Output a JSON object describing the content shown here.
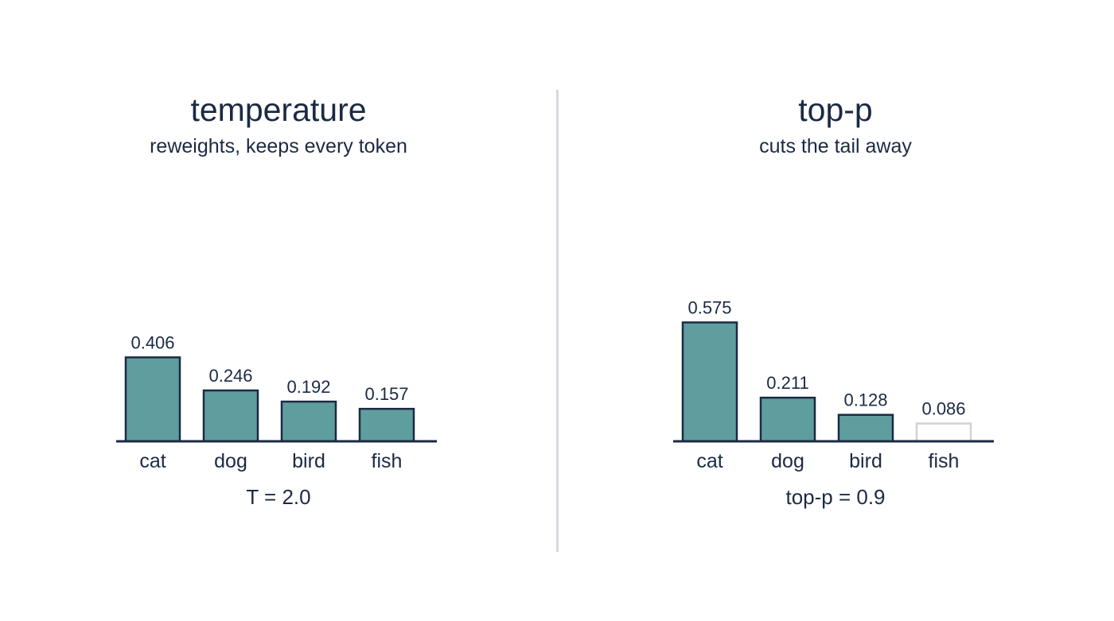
{
  "colors": {
    "bar_fill": "#5f9e9e",
    "bar_stroke": "#1b2a44",
    "excluded_stroke": "#cfd2d6",
    "axis": "#1b2a44",
    "text": "#1b2a44",
    "divider": "#d4d7dc"
  },
  "chart_data": [
    {
      "type": "bar",
      "title": "temperature",
      "subtitle": "reweights, keeps every token",
      "categories": [
        "cat",
        "dog",
        "bird",
        "fish"
      ],
      "values": [
        0.406,
        0.246,
        0.192,
        0.157
      ],
      "value_labels": [
        "0.406",
        "0.246",
        "0.192",
        "0.157"
      ],
      "excluded": [
        false,
        false,
        false,
        false
      ],
      "param_label": "T = 2.0",
      "ylim": [
        0,
        0.6
      ]
    },
    {
      "type": "bar",
      "title": "top-p",
      "subtitle": "cuts the tail away",
      "categories": [
        "cat",
        "dog",
        "bird",
        "fish"
      ],
      "values": [
        0.575,
        0.211,
        0.128,
        0.086
      ],
      "value_labels": [
        "0.575",
        "0.211",
        "0.128",
        "0.086"
      ],
      "excluded": [
        false,
        false,
        false,
        true
      ],
      "param_label": "top-p = 0.9",
      "ylim": [
        0,
        0.6
      ]
    }
  ]
}
